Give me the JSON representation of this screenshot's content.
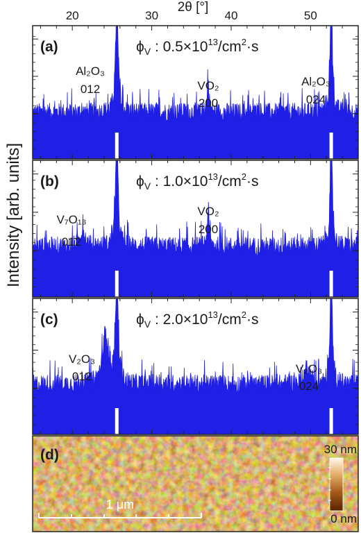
{
  "chart_data": {
    "type": "line",
    "x_axis": {
      "label": "2θ [°]",
      "range": [
        15,
        56
      ],
      "ticks": [
        20,
        30,
        40,
        50
      ],
      "tick_labels": [
        "20",
        "30",
        "40",
        "50"
      ]
    },
    "y_axis": {
      "label": "Intensity [arb. units]",
      "scale": "log",
      "tick_labels_shown": false
    },
    "series_color": "#1f1fe6",
    "panels": [
      {
        "tag": "(a)",
        "flux_symbol": "ϕ",
        "flux_sub": "V",
        "flux_value": " : 0.5×10",
        "flux_exp": "13",
        "flux_unit": "/cm",
        "flux_unit_exp": "2",
        "flux_tail": "·s",
        "annotations": [
          {
            "formula": "Al₂O₃",
            "hkl": "012"
          },
          {
            "formula": "VO₂",
            "hkl": "200"
          },
          {
            "formula": "Al₂O₃",
            "hkl": "024"
          }
        ],
        "peaks": [
          {
            "two_theta": 25.6,
            "rel_height": 1.2,
            "width": 0.18
          },
          {
            "two_theta": 37.1,
            "rel_height": 0.3,
            "width": 0.14
          },
          {
            "two_theta": 52.6,
            "rel_height": 1.2,
            "width": 0.16
          }
        ]
      },
      {
        "tag": "(b)",
        "flux_symbol": "ϕ",
        "flux_sub": "V",
        "flux_value": " : 1.0×10",
        "flux_exp": "13",
        "flux_unit": "/cm",
        "flux_unit_exp": "2",
        "flux_tail": "·s",
        "annotations": [
          {
            "formula": "V₇O₁₃",
            "hkl": "01̄2"
          },
          {
            "formula": "VO₂",
            "hkl": "200"
          }
        ],
        "peaks": [
          {
            "two_theta": 21.3,
            "rel_height": 0.17,
            "width": 0.35
          },
          {
            "two_theta": 25.6,
            "rel_height": 1.2,
            "width": 0.18
          },
          {
            "two_theta": 37.1,
            "rel_height": 0.4,
            "width": 0.14
          },
          {
            "two_theta": 52.6,
            "rel_height": 1.2,
            "width": 0.16
          }
        ]
      },
      {
        "tag": "(c)",
        "flux_symbol": "ϕ",
        "flux_sub": "V",
        "flux_value": " : 2.0×10",
        "flux_exp": "13",
        "flux_unit": "/cm",
        "flux_unit_exp": "2",
        "flux_tail": "·s",
        "annotations": [
          {
            "formula": "V₂O₃",
            "hkl": "012"
          },
          {
            "formula": "V₂O₃",
            "hkl": "024"
          }
        ],
        "peaks": [
          {
            "two_theta": 24.2,
            "rel_height": 0.55,
            "width": 0.45
          },
          {
            "two_theta": 25.6,
            "rel_height": 1.2,
            "width": 0.18
          },
          {
            "two_theta": 49.6,
            "rel_height": 0.2,
            "width": 0.4
          },
          {
            "two_theta": 52.6,
            "rel_height": 1.2,
            "width": 0.16
          }
        ]
      }
    ]
  },
  "afm": {
    "tag": "(d)",
    "colorbar_top": "30 nm",
    "colorbar_bottom": "0 nm",
    "scale_bar_label": "1 μm",
    "colors": [
      "#4a1c00",
      "#8a4510",
      "#c98a3c",
      "#f0c98a",
      "#fff6e8"
    ]
  }
}
